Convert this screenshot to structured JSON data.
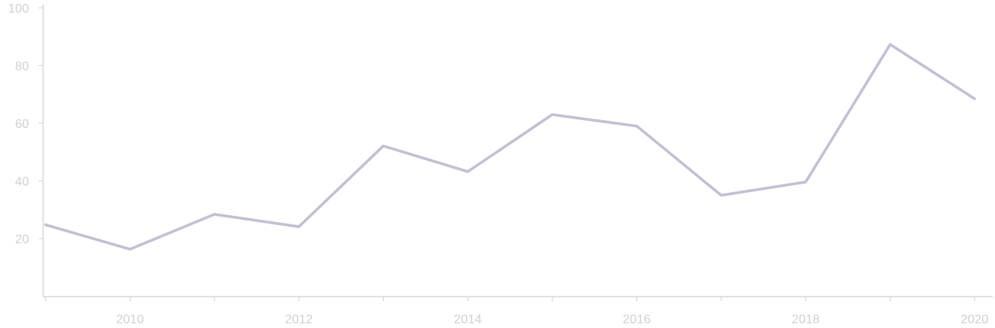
{
  "chart_data": {
    "type": "line",
    "title": "",
    "xlabel": "",
    "ylabel": "",
    "x": [
      2009,
      2010,
      2011,
      2012,
      2013,
      2014,
      2015,
      2016,
      2017,
      2018,
      2019,
      2020
    ],
    "series": [
      {
        "values": [
          24.8,
          16.3,
          28.4,
          24.1,
          52.1,
          43.2,
          63.0,
          59.0,
          35.0,
          39.6,
          87.3,
          68.5
        ],
        "color": "#c4bfd3"
      }
    ],
    "xlim": [
      2009,
      2020.2
    ],
    "ylim": [
      0,
      100
    ],
    "x_ticks": [
      2009,
      2010,
      2011,
      2012,
      2013,
      2014,
      2015,
      2016,
      2017,
      2018,
      2019,
      2020
    ],
    "x_tick_labels": [
      "2010",
      "2012",
      "2014",
      "2016",
      "2018",
      "2020"
    ],
    "x_tick_label_values": [
      2010,
      2012,
      2014,
      2016,
      2018,
      2020
    ],
    "y_ticks": [
      20,
      40,
      60,
      80,
      100
    ],
    "y_tick_labels": [
      "20",
      "40",
      "60",
      "80",
      "100"
    ],
    "grid": false,
    "legend": "none",
    "colors": {
      "axis": "#d8d8d8",
      "tick_text": "#d0d0d0"
    }
  }
}
